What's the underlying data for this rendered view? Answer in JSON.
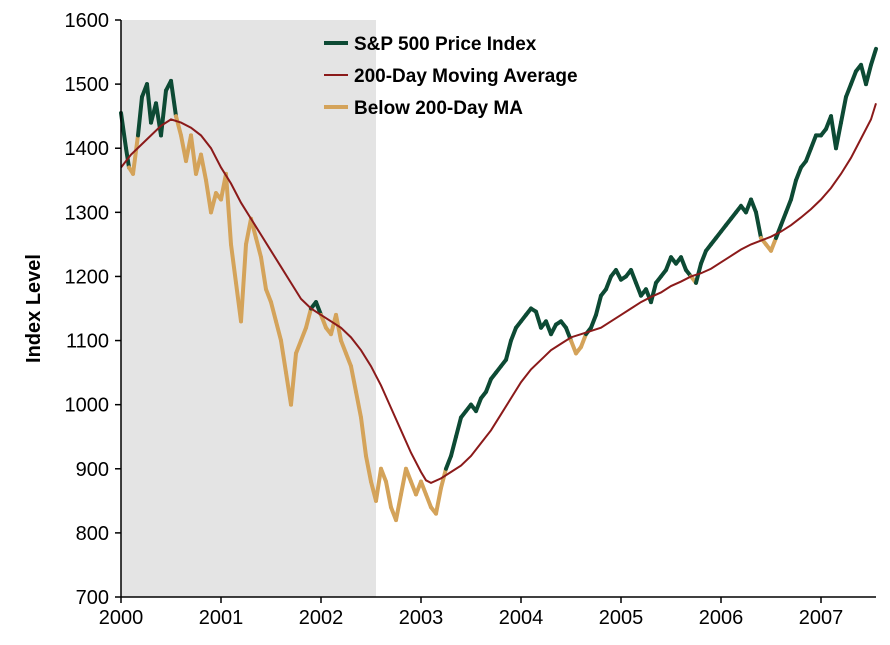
{
  "chart_data": {
    "type": "line",
    "title": "",
    "xlabel": "",
    "ylabel": "Index Level",
    "xlim": [
      2000.0,
      2007.55
    ],
    "ylim": [
      700,
      1600
    ],
    "x_ticks": [
      "2000",
      "2001",
      "2002",
      "2003",
      "2004",
      "2005",
      "2006",
      "2007"
    ],
    "y_ticks": [
      "700",
      "800",
      "900",
      "1000",
      "1100",
      "1200",
      "1300",
      "1400",
      "1500",
      "1600"
    ],
    "grid": false,
    "legend_position": "top-center",
    "shaded_region": {
      "x_start": 2000.0,
      "x_end": 2002.55,
      "color": "#e4e4e4"
    },
    "colors": {
      "price": "#0d4a34",
      "ma": "#8b1a1a",
      "below": "#d4a35a"
    },
    "legend": [
      {
        "label": "S&P 500 Price Index",
        "series": "price"
      },
      {
        "label": "200-Day Moving Average",
        "series": "ma"
      },
      {
        "label": "Below 200-Day MA",
        "series": "below"
      }
    ],
    "series": [
      {
        "name": "S&P 500 Price Index",
        "points": [
          [
            2000.0,
            1455
          ],
          [
            2000.05,
            1400
          ],
          [
            2000.08,
            1370
          ],
          [
            2000.12,
            1360
          ],
          [
            2000.17,
            1420
          ],
          [
            2000.21,
            1480
          ],
          [
            2000.26,
            1500
          ],
          [
            2000.3,
            1440
          ],
          [
            2000.35,
            1470
          ],
          [
            2000.4,
            1420
          ],
          [
            2000.45,
            1490
          ],
          [
            2000.5,
            1505
          ],
          [
            2000.55,
            1450
          ],
          [
            2000.6,
            1420
          ],
          [
            2000.65,
            1380
          ],
          [
            2000.7,
            1420
          ],
          [
            2000.75,
            1360
          ],
          [
            2000.8,
            1390
          ],
          [
            2000.85,
            1350
          ],
          [
            2000.9,
            1300
          ],
          [
            2000.95,
            1330
          ],
          [
            2001.0,
            1320
          ],
          [
            2001.05,
            1360
          ],
          [
            2001.1,
            1250
          ],
          [
            2001.15,
            1190
          ],
          [
            2001.2,
            1130
          ],
          [
            2001.25,
            1250
          ],
          [
            2001.3,
            1290
          ],
          [
            2001.35,
            1260
          ],
          [
            2001.4,
            1230
          ],
          [
            2001.45,
            1180
          ],
          [
            2001.5,
            1160
          ],
          [
            2001.55,
            1130
          ],
          [
            2001.6,
            1100
          ],
          [
            2001.65,
            1050
          ],
          [
            2001.7,
            1000
          ],
          [
            2001.75,
            1080
          ],
          [
            2001.8,
            1100
          ],
          [
            2001.85,
            1120
          ],
          [
            2001.9,
            1150
          ],
          [
            2001.95,
            1160
          ],
          [
            2002.0,
            1140
          ],
          [
            2002.05,
            1120
          ],
          [
            2002.1,
            1110
          ],
          [
            2002.15,
            1140
          ],
          [
            2002.2,
            1100
          ],
          [
            2002.25,
            1080
          ],
          [
            2002.3,
            1060
          ],
          [
            2002.35,
            1020
          ],
          [
            2002.4,
            980
          ],
          [
            2002.45,
            920
          ],
          [
            2002.5,
            880
          ],
          [
            2002.55,
            850
          ],
          [
            2002.6,
            900
          ],
          [
            2002.65,
            880
          ],
          [
            2002.7,
            840
          ],
          [
            2002.75,
            820
          ],
          [
            2002.8,
            860
          ],
          [
            2002.85,
            900
          ],
          [
            2002.9,
            880
          ],
          [
            2002.95,
            860
          ],
          [
            2003.0,
            880
          ],
          [
            2003.05,
            860
          ],
          [
            2003.1,
            840
          ],
          [
            2003.15,
            830
          ],
          [
            2003.2,
            870
          ],
          [
            2003.25,
            900
          ],
          [
            2003.3,
            920
          ],
          [
            2003.35,
            950
          ],
          [
            2003.4,
            980
          ],
          [
            2003.45,
            990
          ],
          [
            2003.5,
            1000
          ],
          [
            2003.55,
            990
          ],
          [
            2003.6,
            1010
          ],
          [
            2003.65,
            1020
          ],
          [
            2003.7,
            1040
          ],
          [
            2003.75,
            1050
          ],
          [
            2003.8,
            1060
          ],
          [
            2003.85,
            1070
          ],
          [
            2003.9,
            1100
          ],
          [
            2003.95,
            1120
          ],
          [
            2004.0,
            1130
          ],
          [
            2004.05,
            1140
          ],
          [
            2004.1,
            1150
          ],
          [
            2004.15,
            1145
          ],
          [
            2004.2,
            1120
          ],
          [
            2004.25,
            1130
          ],
          [
            2004.3,
            1110
          ],
          [
            2004.35,
            1125
          ],
          [
            2004.4,
            1130
          ],
          [
            2004.45,
            1120
          ],
          [
            2004.5,
            1100
          ],
          [
            2004.55,
            1080
          ],
          [
            2004.6,
            1090
          ],
          [
            2004.65,
            1110
          ],
          [
            2004.7,
            1120
          ],
          [
            2004.75,
            1140
          ],
          [
            2004.8,
            1170
          ],
          [
            2004.85,
            1180
          ],
          [
            2004.9,
            1200
          ],
          [
            2004.95,
            1210
          ],
          [
            2005.0,
            1195
          ],
          [
            2005.05,
            1200
          ],
          [
            2005.1,
            1210
          ],
          [
            2005.15,
            1190
          ],
          [
            2005.2,
            1170
          ],
          [
            2005.25,
            1180
          ],
          [
            2005.3,
            1160
          ],
          [
            2005.35,
            1190
          ],
          [
            2005.4,
            1200
          ],
          [
            2005.45,
            1210
          ],
          [
            2005.5,
            1230
          ],
          [
            2005.55,
            1220
          ],
          [
            2005.6,
            1230
          ],
          [
            2005.65,
            1210
          ],
          [
            2005.7,
            1200
          ],
          [
            2005.75,
            1190
          ],
          [
            2005.8,
            1220
          ],
          [
            2005.85,
            1240
          ],
          [
            2005.9,
            1250
          ],
          [
            2005.95,
            1260
          ],
          [
            2006.0,
            1270
          ],
          [
            2006.05,
            1280
          ],
          [
            2006.1,
            1290
          ],
          [
            2006.15,
            1300
          ],
          [
            2006.2,
            1310
          ],
          [
            2006.25,
            1300
          ],
          [
            2006.3,
            1320
          ],
          [
            2006.35,
            1300
          ],
          [
            2006.4,
            1260
          ],
          [
            2006.45,
            1250
          ],
          [
            2006.5,
            1240
          ],
          [
            2006.55,
            1260
          ],
          [
            2006.6,
            1280
          ],
          [
            2006.65,
            1300
          ],
          [
            2006.7,
            1320
          ],
          [
            2006.75,
            1350
          ],
          [
            2006.8,
            1370
          ],
          [
            2006.85,
            1380
          ],
          [
            2006.9,
            1400
          ],
          [
            2006.95,
            1420
          ],
          [
            2007.0,
            1420
          ],
          [
            2007.05,
            1430
          ],
          [
            2007.1,
            1450
          ],
          [
            2007.15,
            1400
          ],
          [
            2007.2,
            1440
          ],
          [
            2007.25,
            1480
          ],
          [
            2007.3,
            1500
          ],
          [
            2007.35,
            1520
          ],
          [
            2007.4,
            1530
          ],
          [
            2007.45,
            1500
          ],
          [
            2007.5,
            1530
          ],
          [
            2007.55,
            1555
          ]
        ]
      },
      {
        "name": "200-Day Moving Average",
        "points": [
          [
            2000.0,
            1370
          ],
          [
            2000.1,
            1390
          ],
          [
            2000.2,
            1405
          ],
          [
            2000.3,
            1420
          ],
          [
            2000.4,
            1435
          ],
          [
            2000.5,
            1445
          ],
          [
            2000.6,
            1440
          ],
          [
            2000.7,
            1432
          ],
          [
            2000.8,
            1420
          ],
          [
            2000.9,
            1400
          ],
          [
            2001.0,
            1370
          ],
          [
            2001.1,
            1345
          ],
          [
            2001.2,
            1315
          ],
          [
            2001.3,
            1290
          ],
          [
            2001.4,
            1265
          ],
          [
            2001.5,
            1240
          ],
          [
            2001.6,
            1215
          ],
          [
            2001.7,
            1190
          ],
          [
            2001.8,
            1165
          ],
          [
            2001.9,
            1150
          ],
          [
            2002.0,
            1140
          ],
          [
            2002.1,
            1130
          ],
          [
            2002.2,
            1120
          ],
          [
            2002.3,
            1105
          ],
          [
            2002.4,
            1085
          ],
          [
            2002.5,
            1060
          ],
          [
            2002.6,
            1030
          ],
          [
            2002.7,
            995
          ],
          [
            2002.8,
            960
          ],
          [
            2002.9,
            925
          ],
          [
            2003.0,
            895
          ],
          [
            2003.05,
            882
          ],
          [
            2003.1,
            878
          ],
          [
            2003.2,
            885
          ],
          [
            2003.3,
            895
          ],
          [
            2003.4,
            905
          ],
          [
            2003.5,
            920
          ],
          [
            2003.6,
            940
          ],
          [
            2003.7,
            960
          ],
          [
            2003.8,
            985
          ],
          [
            2003.9,
            1010
          ],
          [
            2004.0,
            1035
          ],
          [
            2004.1,
            1055
          ],
          [
            2004.2,
            1070
          ],
          [
            2004.3,
            1085
          ],
          [
            2004.4,
            1095
          ],
          [
            2004.5,
            1105
          ],
          [
            2004.6,
            1110
          ],
          [
            2004.7,
            1115
          ],
          [
            2004.8,
            1120
          ],
          [
            2004.9,
            1130
          ],
          [
            2005.0,
            1140
          ],
          [
            2005.1,
            1150
          ],
          [
            2005.2,
            1160
          ],
          [
            2005.3,
            1168
          ],
          [
            2005.4,
            1175
          ],
          [
            2005.5,
            1185
          ],
          [
            2005.6,
            1192
          ],
          [
            2005.7,
            1200
          ],
          [
            2005.8,
            1205
          ],
          [
            2005.9,
            1212
          ],
          [
            2006.0,
            1222
          ],
          [
            2006.1,
            1232
          ],
          [
            2006.2,
            1242
          ],
          [
            2006.3,
            1250
          ],
          [
            2006.4,
            1256
          ],
          [
            2006.5,
            1262
          ],
          [
            2006.6,
            1270
          ],
          [
            2006.7,
            1280
          ],
          [
            2006.8,
            1292
          ],
          [
            2006.9,
            1305
          ],
          [
            2007.0,
            1320
          ],
          [
            2007.1,
            1338
          ],
          [
            2007.2,
            1360
          ],
          [
            2007.3,
            1385
          ],
          [
            2007.4,
            1415
          ],
          [
            2007.5,
            1445
          ],
          [
            2007.55,
            1470
          ]
        ]
      }
    ]
  }
}
